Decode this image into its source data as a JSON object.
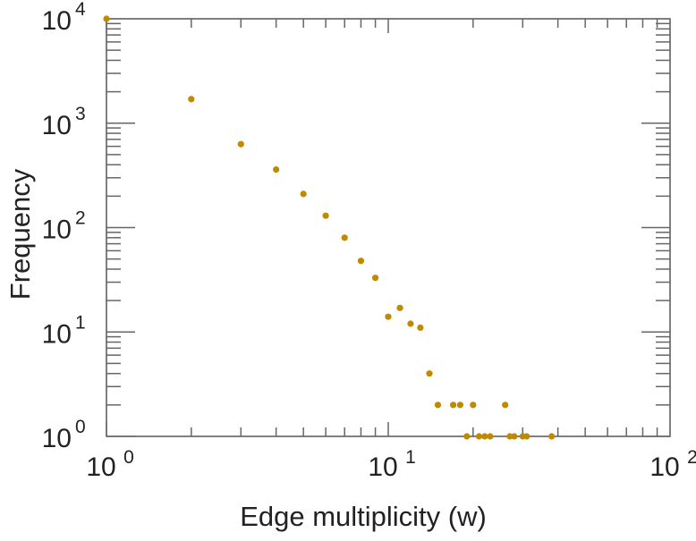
{
  "chart_data": {
    "type": "scatter",
    "title": "",
    "xlabel": "Edge multiplicity (w)",
    "ylabel": "Frequency",
    "xscale": "log",
    "yscale": "log",
    "xlim": [
      1,
      100
    ],
    "ylim": [
      1,
      10000
    ],
    "x_ticks": [
      {
        "base": "10",
        "exp": "0",
        "value": 1
      },
      {
        "base": "10",
        "exp": "1",
        "value": 10
      },
      {
        "base": "10",
        "exp": "2",
        "value": 100
      }
    ],
    "y_ticks": [
      {
        "base": "10",
        "exp": "0",
        "value": 1
      },
      {
        "base": "10",
        "exp": "1",
        "value": 10
      },
      {
        "base": "10",
        "exp": "2",
        "value": 100
      },
      {
        "base": "10",
        "exp": "3",
        "value": 1000
      },
      {
        "base": "10",
        "exp": "4",
        "value": 10000
      }
    ],
    "grid": false,
    "marker_color": "#c08a00",
    "points": [
      [
        1,
        10000
      ],
      [
        2,
        1700
      ],
      [
        3,
        630
      ],
      [
        4,
        360
      ],
      [
        5,
        210
      ],
      [
        6,
        130
      ],
      [
        7,
        80
      ],
      [
        8,
        48
      ],
      [
        9,
        33
      ],
      [
        10,
        14
      ],
      [
        11,
        17
      ],
      [
        12,
        12
      ],
      [
        13,
        11
      ],
      [
        14,
        4
      ],
      [
        15,
        2
      ],
      [
        17,
        2
      ],
      [
        18,
        2
      ],
      [
        19,
        1
      ],
      [
        20,
        2
      ],
      [
        21,
        1
      ],
      [
        22,
        1
      ],
      [
        23,
        1
      ],
      [
        26,
        2
      ],
      [
        27,
        1
      ],
      [
        28,
        1
      ],
      [
        30,
        1
      ],
      [
        31,
        1
      ],
      [
        38,
        1
      ]
    ]
  }
}
